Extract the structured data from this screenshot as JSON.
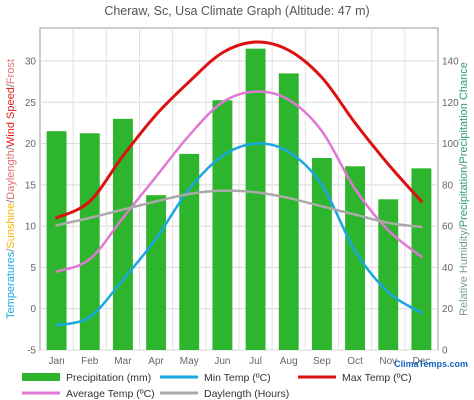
{
  "chart_data": {
    "type": "bar",
    "title": "Cheraw, Sc, Usa Climate Graph (Altitude: 47 m)",
    "categories": [
      "Jan",
      "Feb",
      "Mar",
      "Apr",
      "May",
      "Jun",
      "Jul",
      "Aug",
      "Sep",
      "Oct",
      "Nov",
      "Dec"
    ],
    "left_axis": {
      "label_parts": [
        {
          "text": "Temperatures",
          "color": "#1aa7e0"
        },
        {
          "text": "/",
          "color": "#777777"
        },
        {
          "text": "Sunshine",
          "color": "#f5b800"
        },
        {
          "text": "/",
          "color": "#777777"
        },
        {
          "text": "Daylength",
          "color": "#e07070"
        },
        {
          "text": "/",
          "color": "#777777"
        },
        {
          "text": "Wind Speed",
          "color": "#e02020"
        },
        {
          "text": "/",
          "color": "#777777"
        },
        {
          "text": "Frost",
          "color": "#e07070"
        }
      ],
      "ylim": [
        -5,
        34
      ],
      "ticks": [
        -5,
        0,
        5,
        10,
        15,
        20,
        25,
        30
      ]
    },
    "right_axis": {
      "label_parts": [
        {
          "text": "Relative Humidity",
          "color": "#7a9c9c"
        },
        {
          "text": "/",
          "color": "#777777"
        },
        {
          "text": "Precipitation",
          "color": "#2e9e6e"
        },
        {
          "text": "/",
          "color": "#777777"
        },
        {
          "text": "Precipitation Chance",
          "color": "#2e9e6e"
        }
      ],
      "ylim": [
        0,
        156
      ],
      "ticks": [
        0,
        20,
        40,
        60,
        80,
        100,
        120,
        140
      ]
    },
    "grid": true,
    "series": [
      {
        "name": "Precipitation (mm)",
        "type": "bar",
        "axis": "right",
        "color": "#2db52d",
        "values": [
          106,
          105,
          112,
          75,
          95,
          121,
          146,
          134,
          93,
          89,
          73,
          88
        ]
      },
      {
        "name": "Min Temp (ºC)",
        "type": "line",
        "axis": "left",
        "color": "#1aa7e0",
        "values": [
          -2.0,
          -1.0,
          3.5,
          8.5,
          14.5,
          18.5,
          20.0,
          19.0,
          15.0,
          7.0,
          2.0,
          -0.5
        ]
      },
      {
        "name": "Max Temp (ºC)",
        "type": "line",
        "axis": "left",
        "color": "#dd1111",
        "values": [
          11.0,
          13.0,
          18.5,
          23.5,
          27.5,
          31.0,
          32.3,
          31.3,
          28.0,
          22.5,
          17.5,
          13.0
        ]
      },
      {
        "name": "Average Temp (ºC)",
        "type": "line",
        "axis": "left",
        "color": "#e078d6",
        "values": [
          4.5,
          6.0,
          11.0,
          16.0,
          21.0,
          25.0,
          26.3,
          25.3,
          21.5,
          14.5,
          9.5,
          6.3
        ]
      },
      {
        "name": "Daylength (Hours)",
        "type": "line",
        "axis": "left",
        "color": "#aaaaaa",
        "values": [
          10.1,
          11.0,
          12.0,
          13.0,
          13.9,
          14.3,
          14.1,
          13.4,
          12.4,
          11.4,
          10.4,
          9.9
        ]
      }
    ],
    "legend": {
      "placement": "bottom",
      "items": [
        {
          "label": "Precipitation (mm)",
          "color": "#2db52d",
          "kind": "bar"
        },
        {
          "label": "Min Temp (ºC)",
          "color": "#1aa7e0",
          "kind": "line"
        },
        {
          "label": "Max Temp (ºC)",
          "color": "#dd1111",
          "kind": "line"
        },
        {
          "label": "Average Temp (ºC)",
          "color": "#e078d6",
          "kind": "line"
        },
        {
          "label": "Daylength (Hours)",
          "color": "#aaaaaa",
          "kind": "line"
        }
      ]
    },
    "brand": "ClimaTemps.com"
  }
}
